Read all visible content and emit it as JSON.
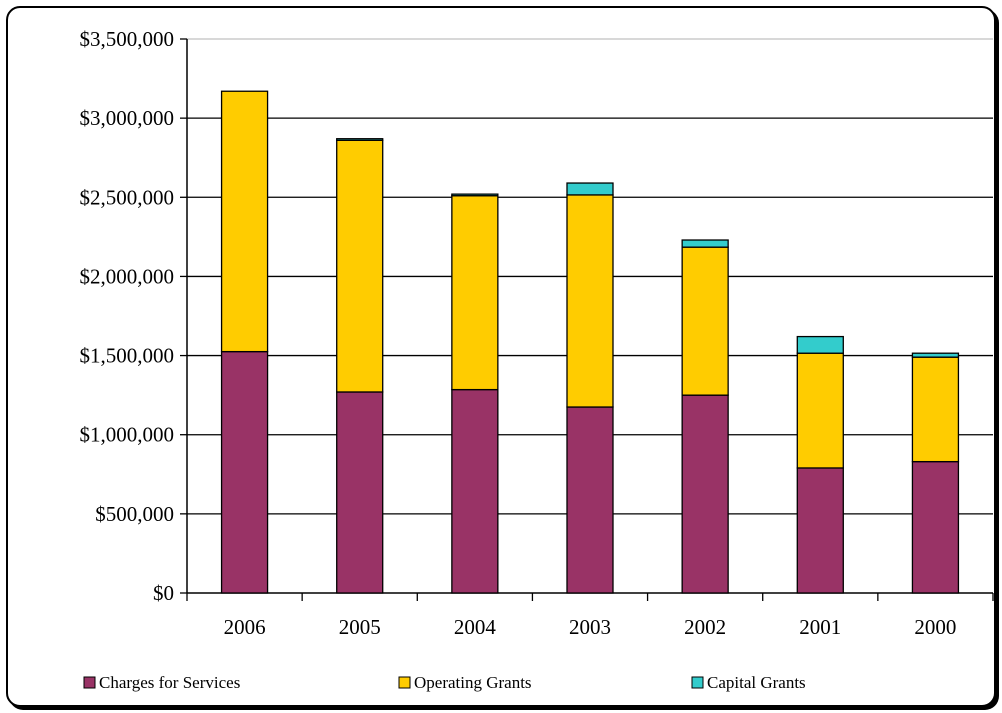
{
  "chart_data": {
    "type": "bar",
    "stacked": true,
    "categories": [
      "2006",
      "2005",
      "2004",
      "2003",
      "2002",
      "2001",
      "2000"
    ],
    "series": [
      {
        "name": "Charges for Services",
        "color": "#993366",
        "values": [
          1525000,
          1270000,
          1285000,
          1175000,
          1250000,
          790000,
          830000
        ]
      },
      {
        "name": "Operating Grants",
        "color": "#ffcc00",
        "values": [
          1645000,
          1590000,
          1225000,
          1340000,
          935000,
          725000,
          660000
        ]
      },
      {
        "name": "Capital Grants",
        "color": "#33cccc",
        "values": [
          0,
          10000,
          10000,
          75000,
          45000,
          105000,
          25000
        ]
      }
    ],
    "y_ticks": [
      "$0",
      "$500,000",
      "$1,000,000",
      "$1,500,000",
      "$2,000,000",
      "$2,500,000",
      "$3,000,000",
      "$3,500,000"
    ],
    "ylim": [
      0,
      3500000
    ],
    "grid": true,
    "legend": "bottom",
    "title": "",
    "xlabel": "",
    "ylabel": ""
  }
}
